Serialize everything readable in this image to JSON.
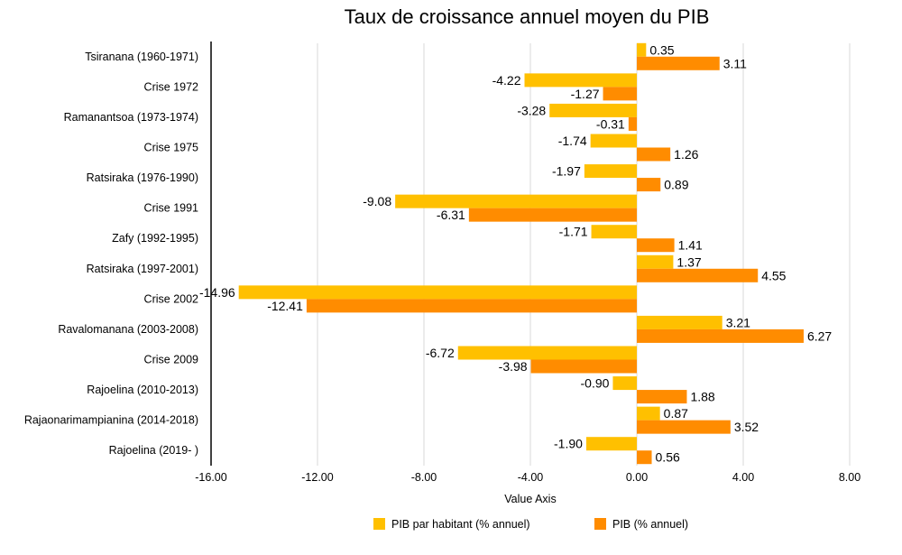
{
  "chart_data": {
    "type": "bar",
    "orientation": "horizontal",
    "title": "Taux de croissance annuel moyen du PIB",
    "xlabel": "Value Axis",
    "ylabel": "",
    "xlim": [
      -16,
      8
    ],
    "ticks": [
      -16,
      -12,
      -8,
      -4,
      0,
      4,
      8
    ],
    "tick_labels": [
      "-16.00",
      "-12.00",
      "-8.00",
      "-4.00",
      "0.00",
      "4.00",
      "8.00"
    ],
    "grid": true,
    "legend_position": "bottom",
    "categories": [
      "Tsiranana (1960-1971)",
      "Crise 1972",
      "Ramanantsoa (1973-1974)",
      "Crise 1975",
      "Ratsiraka (1976-1990)",
      "Crise 1991",
      "Zafy (1992-1995)",
      "Ratsiraka (1997-2001)",
      "Crise 2002",
      "Ravalomanana (2003-2008)",
      "Crise 2009",
      "Rajoelina (2010-2013)",
      "Rajaonarimampianina (2014-2018)",
      "Rajoelina (2019-  )"
    ],
    "series": [
      {
        "name": "PIB par habitant (% annuel)",
        "color": "#FFC000",
        "values": [
          0.35,
          -4.22,
          -3.28,
          -1.74,
          -1.97,
          -9.08,
          -1.71,
          1.37,
          -14.96,
          3.21,
          -6.72,
          -0.9,
          0.87,
          -1.9
        ],
        "labels": [
          "0.35",
          "-4.22",
          "-3.28",
          "-1.74",
          "-1.97",
          "-9.08",
          "-1.71",
          "1.37",
          "-14.96",
          "3.21",
          "-6.72",
          "-0.90",
          "0.87",
          "-1.90"
        ]
      },
      {
        "name": "PIB (% annuel)",
        "color": "#FF8C00",
        "values": [
          3.11,
          -1.27,
          -0.31,
          1.26,
          0.89,
          -6.31,
          1.41,
          4.55,
          -12.41,
          6.27,
          -3.98,
          1.88,
          3.52,
          0.56
        ],
        "labels": [
          "3.11",
          "-1.27",
          "-0.31",
          "1.26",
          "0.89",
          "-6.31",
          "1.41",
          "4.55",
          "-12.41",
          "6.27",
          "-3.98",
          "1.88",
          "3.52",
          "0.56"
        ]
      }
    ]
  }
}
